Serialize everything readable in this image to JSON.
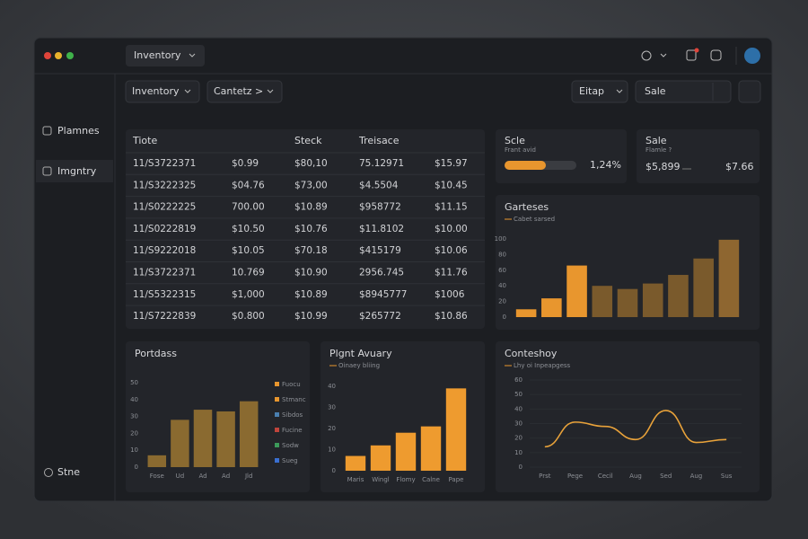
{
  "toolbar": {
    "menu": "Inventory",
    "filter_1": "Inventory",
    "filter_2": "Cantetz >",
    "search": "Eitap",
    "input": "Sale"
  },
  "sidebar": {
    "items": [
      "Plamnes",
      "Imgntry"
    ],
    "footer": "Stne"
  },
  "table": {
    "columns": [
      "Tiote",
      "Steck",
      "Treisace"
    ],
    "rows": [
      [
        "11/S3722371",
        "$0.99",
        "$80,10",
        "75.12971",
        "$15.97"
      ],
      [
        "11/S3222325",
        "$04.76",
        "$73,00",
        "$4.5504",
        "$10.45"
      ],
      [
        "11/S0222225",
        "700.00",
        "$10.89",
        "$958772",
        "$11.15"
      ],
      [
        "11/S0222819",
        "$10.50",
        "$10.76",
        "$11.8102",
        "$10.00"
      ],
      [
        "11/S9222018",
        "$10.05",
        "$70.18",
        "$415179",
        "$10.06"
      ],
      [
        "11/S3722371",
        "10.769",
        "$10.90",
        "2956.745",
        "$11.76"
      ],
      [
        "11/S5322315",
        "$1,000",
        "$10.89",
        "$8945777",
        "$1006"
      ],
      [
        "11/S7222839",
        "$0.800",
        "$10.99",
        "$265772",
        "$10.86"
      ]
    ]
  },
  "cards": [
    {
      "title": "Scle",
      "subtitle": "Frant avid",
      "value": "1,24%"
    },
    {
      "title": "Sale",
      "subtitle": "Flamle ?",
      "value": "$5,899",
      "secondary": "$7.66"
    }
  ],
  "chart_data": [
    {
      "type": "bar",
      "title": "Garteses",
      "subtitle": "Cabet sarsed",
      "categories": [
        null,
        null,
        null,
        null,
        null,
        null,
        null,
        null,
        null
      ],
      "values": [
        10,
        24,
        66,
        40,
        36,
        43,
        54,
        75,
        99
      ],
      "colors": [
        "#e8962e",
        "#e8962e",
        "#e8962e",
        "#7a5a2c",
        "#7a5a2c",
        "#7a5a2c",
        "#7a5a2c",
        "#7a5a2c",
        "#8e6630"
      ],
      "ylim": [
        0,
        100
      ],
      "yticks": [
        0,
        20,
        40,
        60,
        80,
        100
      ]
    },
    {
      "type": "bar",
      "title": "Portdass",
      "categories": [
        "Fose",
        "Ud",
        "Ad",
        "Ad",
        "Jld"
      ],
      "values": [
        7,
        28,
        34,
        33,
        39
      ],
      "colors": [
        "#8a6a30",
        "#8a6a30",
        "#8a6a30",
        "#8a6a30",
        "#8a6a30"
      ],
      "ylim": [
        0,
        50
      ],
      "yticks": [
        0,
        10,
        20,
        30,
        40,
        50
      ],
      "legend": [
        {
          "label": "Fuocu",
          "color": "#e8962e"
        },
        {
          "label": "Stmanc",
          "color": "#e8962e"
        },
        {
          "label": "Sibdos",
          "color": "#4a7fb0"
        },
        {
          "label": "Fucine",
          "color": "#c0443c"
        },
        {
          "label": "Sodw",
          "color": "#3c9a5a"
        },
        {
          "label": "Sueg",
          "color": "#3a6fd0"
        }
      ]
    },
    {
      "type": "bar",
      "title": "Plgnt Avuary",
      "subtitle": "Oinaey bliing",
      "categories": [
        "Maris",
        "Wingl",
        "Flomy",
        "Calne",
        "Pape"
      ],
      "values": [
        7,
        12,
        18,
        21,
        39
      ],
      "colors": [
        "#ee9b2f",
        "#ee9b2f",
        "#ee9b2f",
        "#ee9b2f",
        "#ee9b2f"
      ],
      "ylim": [
        0,
        40
      ],
      "yticks": [
        0,
        10,
        20,
        30,
        40
      ]
    },
    {
      "type": "line",
      "title": "Conteshoy",
      "subtitle": "Lhy oi Inpeapgess",
      "categories": [
        "Prst",
        "Pege",
        "Cecil",
        "Aug",
        "Sed",
        "Aug",
        "Sus"
      ],
      "values": [
        14,
        31,
        28,
        19,
        39,
        17,
        19
      ],
      "color": "#e8a23a",
      "ylim": [
        0,
        60
      ],
      "yticks": [
        0,
        10,
        20,
        30,
        40,
        50,
        60
      ]
    }
  ]
}
